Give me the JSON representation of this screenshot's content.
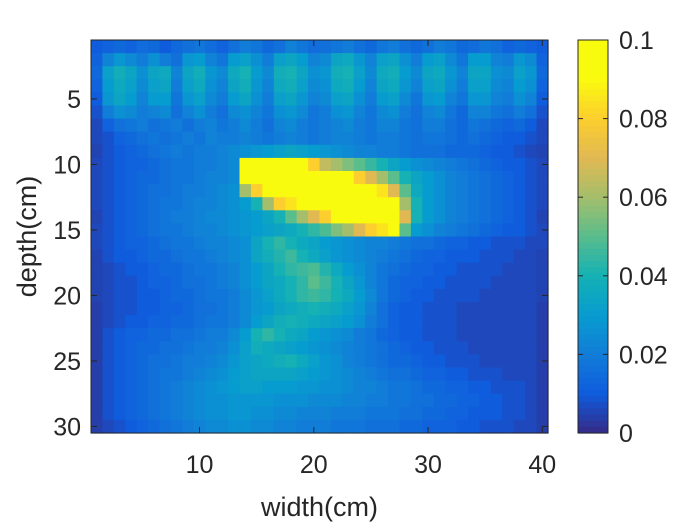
{
  "chart_data": {
    "type": "heatmap",
    "title": "",
    "xlabel": "width(cm)",
    "ylabel": "depth(cm)",
    "x_range": [
      1,
      40
    ],
    "y_range": [
      1,
      30
    ],
    "x_ticks": [
      10,
      20,
      30,
      40
    ],
    "x_tick_labels": [
      "10",
      "20",
      "30",
      "40"
    ],
    "y_ticks": [
      5,
      10,
      15,
      20,
      25,
      30
    ],
    "y_tick_labels": [
      "5",
      "10",
      "15",
      "20",
      "25",
      "30"
    ],
    "y_direction": "reversed",
    "colormap": "parula",
    "colorbar": {
      "range": [
        0,
        0.1
      ],
      "ticks": [
        0,
        0.02,
        0.04,
        0.06,
        0.08,
        0.1
      ],
      "tick_labels": [
        "0",
        "0.02",
        "0.04",
        "0.06",
        "0.08",
        "0.1"
      ]
    },
    "grid": false,
    "z": [
      [
        0.01,
        0.012,
        0.014,
        0.012,
        0.015,
        0.014,
        0.01,
        0.014,
        0.016,
        0.018,
        0.015,
        0.012,
        0.016,
        0.02,
        0.018,
        0.014,
        0.016,
        0.021,
        0.018,
        0.015,
        0.016,
        0.018,
        0.02,
        0.016,
        0.014,
        0.018,
        0.02,
        0.016,
        0.014,
        0.016,
        0.02,
        0.018,
        0.014,
        0.015,
        0.018,
        0.016,
        0.012,
        0.014,
        0.012,
        0.01
      ],
      [
        0.012,
        0.022,
        0.028,
        0.024,
        0.02,
        0.026,
        0.02,
        0.016,
        0.028,
        0.03,
        0.022,
        0.018,
        0.03,
        0.032,
        0.026,
        0.02,
        0.032,
        0.034,
        0.03,
        0.022,
        0.024,
        0.034,
        0.036,
        0.028,
        0.022,
        0.032,
        0.034,
        0.026,
        0.02,
        0.03,
        0.032,
        0.024,
        0.018,
        0.03,
        0.03,
        0.022,
        0.02,
        0.028,
        0.024,
        0.012
      ],
      [
        0.014,
        0.032,
        0.038,
        0.034,
        0.026,
        0.034,
        0.036,
        0.022,
        0.034,
        0.038,
        0.028,
        0.024,
        0.036,
        0.04,
        0.03,
        0.024,
        0.038,
        0.04,
        0.034,
        0.026,
        0.028,
        0.038,
        0.04,
        0.032,
        0.024,
        0.036,
        0.038,
        0.03,
        0.024,
        0.034,
        0.036,
        0.028,
        0.022,
        0.034,
        0.034,
        0.026,
        0.024,
        0.032,
        0.028,
        0.014
      ],
      [
        0.012,
        0.03,
        0.036,
        0.032,
        0.024,
        0.032,
        0.034,
        0.02,
        0.032,
        0.036,
        0.026,
        0.022,
        0.034,
        0.038,
        0.028,
        0.022,
        0.036,
        0.038,
        0.032,
        0.024,
        0.026,
        0.036,
        0.038,
        0.03,
        0.022,
        0.034,
        0.036,
        0.028,
        0.022,
        0.032,
        0.034,
        0.026,
        0.02,
        0.032,
        0.032,
        0.024,
        0.022,
        0.03,
        0.026,
        0.012
      ],
      [
        0.01,
        0.028,
        0.034,
        0.03,
        0.022,
        0.03,
        0.03,
        0.018,
        0.028,
        0.032,
        0.024,
        0.02,
        0.03,
        0.034,
        0.026,
        0.02,
        0.032,
        0.034,
        0.028,
        0.022,
        0.024,
        0.032,
        0.034,
        0.026,
        0.02,
        0.03,
        0.032,
        0.024,
        0.018,
        0.028,
        0.03,
        0.022,
        0.018,
        0.028,
        0.028,
        0.022,
        0.02,
        0.026,
        0.022,
        0.01
      ],
      [
        0.008,
        0.02,
        0.026,
        0.024,
        0.02,
        0.022,
        0.024,
        0.016,
        0.022,
        0.026,
        0.02,
        0.016,
        0.024,
        0.026,
        0.022,
        0.018,
        0.026,
        0.028,
        0.024,
        0.018,
        0.02,
        0.026,
        0.028,
        0.022,
        0.018,
        0.024,
        0.026,
        0.02,
        0.016,
        0.022,
        0.024,
        0.018,
        0.014,
        0.022,
        0.022,
        0.018,
        0.016,
        0.02,
        0.016,
        0.008
      ],
      [
        0.006,
        0.012,
        0.016,
        0.018,
        0.02,
        0.016,
        0.018,
        0.02,
        0.016,
        0.02,
        0.022,
        0.018,
        0.02,
        0.024,
        0.02,
        0.016,
        0.022,
        0.024,
        0.02,
        0.018,
        0.02,
        0.022,
        0.024,
        0.02,
        0.018,
        0.022,
        0.022,
        0.018,
        0.016,
        0.02,
        0.02,
        0.016,
        0.014,
        0.018,
        0.016,
        0.014,
        0.012,
        0.014,
        0.01,
        0.006
      ],
      [
        0.006,
        0.008,
        0.012,
        0.014,
        0.016,
        0.018,
        0.016,
        0.018,
        0.02,
        0.018,
        0.022,
        0.02,
        0.02,
        0.022,
        0.02,
        0.018,
        0.02,
        0.022,
        0.02,
        0.018,
        0.02,
        0.022,
        0.022,
        0.02,
        0.018,
        0.02,
        0.02,
        0.018,
        0.016,
        0.018,
        0.018,
        0.016,
        0.014,
        0.016,
        0.014,
        0.012,
        0.01,
        0.01,
        0.008,
        0.006
      ],
      [
        0.005,
        0.008,
        0.01,
        0.012,
        0.014,
        0.016,
        0.018,
        0.02,
        0.018,
        0.02,
        0.02,
        0.022,
        0.024,
        0.026,
        0.028,
        0.03,
        0.032,
        0.034,
        0.032,
        0.03,
        0.028,
        0.026,
        0.024,
        0.022,
        0.022,
        0.02,
        0.02,
        0.018,
        0.016,
        0.016,
        0.016,
        0.014,
        0.014,
        0.014,
        0.012,
        0.01,
        0.01,
        0.008,
        0.006,
        0.005
      ],
      [
        0.006,
        0.008,
        0.01,
        0.012,
        0.012,
        0.014,
        0.016,
        0.018,
        0.018,
        0.02,
        0.02,
        0.022,
        0.024,
        0.1,
        0.1,
        0.1,
        0.1,
        0.1,
        0.095,
        0.08,
        0.065,
        0.06,
        0.055,
        0.05,
        0.045,
        0.04,
        0.034,
        0.03,
        0.026,
        0.024,
        0.022,
        0.02,
        0.018,
        0.016,
        0.014,
        0.012,
        0.01,
        0.01,
        0.008,
        0.006
      ],
      [
        0.006,
        0.008,
        0.01,
        0.012,
        0.014,
        0.014,
        0.016,
        0.018,
        0.018,
        0.02,
        0.022,
        0.022,
        0.024,
        0.1,
        0.1,
        0.1,
        0.1,
        0.1,
        0.1,
        0.1,
        0.1,
        0.1,
        0.09,
        0.08,
        0.07,
        0.06,
        0.05,
        0.04,
        0.034,
        0.03,
        0.026,
        0.022,
        0.02,
        0.018,
        0.016,
        0.014,
        0.012,
        0.01,
        0.008,
        0.006
      ],
      [
        0.006,
        0.008,
        0.01,
        0.012,
        0.014,
        0.016,
        0.016,
        0.018,
        0.02,
        0.02,
        0.022,
        0.024,
        0.026,
        0.06,
        0.08,
        0.1,
        0.1,
        0.1,
        0.1,
        0.1,
        0.1,
        0.1,
        0.1,
        0.1,
        0.095,
        0.085,
        0.07,
        0.05,
        0.036,
        0.03,
        0.026,
        0.022,
        0.02,
        0.018,
        0.016,
        0.014,
        0.012,
        0.01,
        0.008,
        0.006
      ],
      [
        0.006,
        0.008,
        0.01,
        0.012,
        0.014,
        0.016,
        0.018,
        0.018,
        0.02,
        0.022,
        0.022,
        0.024,
        0.026,
        0.03,
        0.04,
        0.06,
        0.08,
        0.085,
        0.1,
        0.1,
        0.1,
        0.1,
        0.1,
        0.1,
        0.1,
        0.1,
        0.09,
        0.06,
        0.04,
        0.03,
        0.026,
        0.022,
        0.02,
        0.018,
        0.016,
        0.014,
        0.012,
        0.01,
        0.008,
        0.006
      ],
      [
        0.005,
        0.008,
        0.01,
        0.012,
        0.014,
        0.016,
        0.018,
        0.02,
        0.02,
        0.022,
        0.024,
        0.024,
        0.026,
        0.028,
        0.03,
        0.034,
        0.04,
        0.05,
        0.06,
        0.07,
        0.08,
        0.09,
        0.1,
        0.1,
        0.1,
        0.1,
        0.1,
        0.07,
        0.04,
        0.03,
        0.026,
        0.022,
        0.02,
        0.018,
        0.016,
        0.014,
        0.012,
        0.01,
        0.008,
        0.005
      ],
      [
        0.006,
        0.008,
        0.01,
        0.012,
        0.014,
        0.016,
        0.018,
        0.018,
        0.02,
        0.022,
        0.022,
        0.024,
        0.026,
        0.028,
        0.03,
        0.032,
        0.034,
        0.036,
        0.04,
        0.044,
        0.048,
        0.055,
        0.06,
        0.07,
        0.08,
        0.085,
        0.09,
        0.05,
        0.03,
        0.026,
        0.022,
        0.02,
        0.018,
        0.016,
        0.014,
        0.012,
        0.01,
        0.01,
        0.008,
        0.006
      ],
      [
        0.006,
        0.008,
        0.01,
        0.012,
        0.012,
        0.014,
        0.016,
        0.018,
        0.018,
        0.02,
        0.022,
        0.022,
        0.024,
        0.026,
        0.034,
        0.04,
        0.044,
        0.04,
        0.036,
        0.034,
        0.03,
        0.028,
        0.026,
        0.024,
        0.022,
        0.022,
        0.02,
        0.018,
        0.016,
        0.016,
        0.014,
        0.012,
        0.012,
        0.01,
        0.01,
        0.008,
        0.008,
        0.008,
        0.006,
        0.006
      ],
      [
        0.005,
        0.008,
        0.01,
        0.01,
        0.012,
        0.014,
        0.014,
        0.016,
        0.018,
        0.018,
        0.02,
        0.022,
        0.024,
        0.026,
        0.034,
        0.038,
        0.042,
        0.046,
        0.04,
        0.036,
        0.032,
        0.028,
        0.026,
        0.024,
        0.022,
        0.02,
        0.018,
        0.016,
        0.014,
        0.012,
        0.012,
        0.01,
        0.01,
        0.01,
        0.008,
        0.008,
        0.008,
        0.006,
        0.006,
        0.005
      ],
      [
        0.005,
        0.006,
        0.008,
        0.01,
        0.01,
        0.012,
        0.014,
        0.014,
        0.016,
        0.018,
        0.018,
        0.02,
        0.022,
        0.026,
        0.03,
        0.034,
        0.04,
        0.044,
        0.046,
        0.048,
        0.042,
        0.036,
        0.03,
        0.026,
        0.022,
        0.018,
        0.016,
        0.014,
        0.012,
        0.012,
        0.01,
        0.01,
        0.008,
        0.008,
        0.008,
        0.008,
        0.006,
        0.006,
        0.006,
        0.005
      ],
      [
        0.005,
        0.006,
        0.008,
        0.008,
        0.01,
        0.012,
        0.012,
        0.014,
        0.016,
        0.016,
        0.018,
        0.02,
        0.022,
        0.026,
        0.03,
        0.034,
        0.036,
        0.04,
        0.044,
        0.05,
        0.046,
        0.04,
        0.034,
        0.028,
        0.022,
        0.018,
        0.014,
        0.012,
        0.012,
        0.01,
        0.01,
        0.008,
        0.008,
        0.008,
        0.008,
        0.006,
        0.006,
        0.006,
        0.006,
        0.005
      ],
      [
        0.005,
        0.006,
        0.008,
        0.008,
        0.01,
        0.01,
        0.012,
        0.014,
        0.014,
        0.016,
        0.018,
        0.018,
        0.02,
        0.024,
        0.028,
        0.032,
        0.036,
        0.04,
        0.044,
        0.046,
        0.044,
        0.04,
        0.036,
        0.03,
        0.024,
        0.018,
        0.014,
        0.012,
        0.01,
        0.01,
        0.008,
        0.008,
        0.008,
        0.008,
        0.006,
        0.006,
        0.006,
        0.006,
        0.006,
        0.005
      ],
      [
        0.004,
        0.006,
        0.008,
        0.008,
        0.01,
        0.01,
        0.012,
        0.012,
        0.014,
        0.016,
        0.016,
        0.018,
        0.02,
        0.024,
        0.028,
        0.03,
        0.034,
        0.036,
        0.038,
        0.04,
        0.038,
        0.036,
        0.032,
        0.028,
        0.022,
        0.016,
        0.012,
        0.01,
        0.01,
        0.008,
        0.008,
        0.008,
        0.006,
        0.006,
        0.006,
        0.006,
        0.006,
        0.006,
        0.006,
        0.004
      ],
      [
        0.004,
        0.006,
        0.008,
        0.01,
        0.01,
        0.012,
        0.012,
        0.014,
        0.014,
        0.016,
        0.018,
        0.018,
        0.02,
        0.024,
        0.03,
        0.034,
        0.038,
        0.04,
        0.038,
        0.036,
        0.034,
        0.032,
        0.03,
        0.026,
        0.02,
        0.016,
        0.012,
        0.01,
        0.01,
        0.008,
        0.008,
        0.008,
        0.006,
        0.006,
        0.006,
        0.006,
        0.006,
        0.006,
        0.006,
        0.004
      ],
      [
        0.004,
        0.008,
        0.01,
        0.012,
        0.012,
        0.014,
        0.014,
        0.016,
        0.016,
        0.018,
        0.02,
        0.02,
        0.024,
        0.03,
        0.04,
        0.044,
        0.04,
        0.036,
        0.034,
        0.03,
        0.028,
        0.026,
        0.024,
        0.02,
        0.018,
        0.014,
        0.012,
        0.01,
        0.01,
        0.008,
        0.008,
        0.008,
        0.006,
        0.006,
        0.006,
        0.006,
        0.006,
        0.006,
        0.006,
        0.004
      ],
      [
        0.004,
        0.008,
        0.01,
        0.012,
        0.014,
        0.014,
        0.016,
        0.016,
        0.018,
        0.02,
        0.02,
        0.022,
        0.026,
        0.032,
        0.038,
        0.036,
        0.034,
        0.032,
        0.03,
        0.028,
        0.026,
        0.024,
        0.022,
        0.02,
        0.018,
        0.016,
        0.014,
        0.012,
        0.01,
        0.01,
        0.008,
        0.008,
        0.008,
        0.006,
        0.006,
        0.006,
        0.006,
        0.006,
        0.006,
        0.004
      ],
      [
        0.004,
        0.008,
        0.01,
        0.012,
        0.014,
        0.016,
        0.016,
        0.018,
        0.02,
        0.02,
        0.022,
        0.024,
        0.028,
        0.032,
        0.034,
        0.036,
        0.038,
        0.04,
        0.036,
        0.032,
        0.028,
        0.026,
        0.022,
        0.02,
        0.018,
        0.016,
        0.014,
        0.014,
        0.012,
        0.01,
        0.01,
        0.008,
        0.008,
        0.008,
        0.006,
        0.006,
        0.006,
        0.006,
        0.006,
        0.004
      ],
      [
        0.004,
        0.008,
        0.01,
        0.012,
        0.014,
        0.016,
        0.018,
        0.018,
        0.02,
        0.022,
        0.024,
        0.026,
        0.03,
        0.032,
        0.034,
        0.034,
        0.034,
        0.034,
        0.032,
        0.03,
        0.028,
        0.026,
        0.024,
        0.022,
        0.02,
        0.018,
        0.016,
        0.016,
        0.014,
        0.012,
        0.012,
        0.01,
        0.01,
        0.008,
        0.008,
        0.008,
        0.006,
        0.006,
        0.006,
        0.004
      ],
      [
        0.004,
        0.008,
        0.01,
        0.012,
        0.014,
        0.016,
        0.018,
        0.02,
        0.022,
        0.024,
        0.026,
        0.028,
        0.03,
        0.032,
        0.032,
        0.03,
        0.03,
        0.03,
        0.028,
        0.028,
        0.026,
        0.026,
        0.024,
        0.022,
        0.022,
        0.02,
        0.018,
        0.018,
        0.016,
        0.014,
        0.014,
        0.012,
        0.012,
        0.01,
        0.01,
        0.008,
        0.008,
        0.008,
        0.006,
        0.004
      ],
      [
        0.004,
        0.008,
        0.01,
        0.012,
        0.014,
        0.016,
        0.018,
        0.02,
        0.022,
        0.024,
        0.026,
        0.026,
        0.028,
        0.028,
        0.028,
        0.028,
        0.026,
        0.026,
        0.026,
        0.024,
        0.024,
        0.024,
        0.022,
        0.022,
        0.02,
        0.02,
        0.018,
        0.018,
        0.016,
        0.016,
        0.014,
        0.014,
        0.012,
        0.012,
        0.01,
        0.01,
        0.008,
        0.008,
        0.006,
        0.004
      ],
      [
        0.004,
        0.008,
        0.01,
        0.012,
        0.014,
        0.016,
        0.018,
        0.02,
        0.022,
        0.024,
        0.026,
        0.026,
        0.028,
        0.028,
        0.026,
        0.026,
        0.024,
        0.024,
        0.022,
        0.022,
        0.022,
        0.02,
        0.02,
        0.02,
        0.018,
        0.018,
        0.018,
        0.016,
        0.016,
        0.014,
        0.014,
        0.012,
        0.012,
        0.01,
        0.01,
        0.01,
        0.008,
        0.008,
        0.006,
        0.004
      ],
      [
        0.004,
        0.006,
        0.008,
        0.01,
        0.012,
        0.014,
        0.016,
        0.018,
        0.02,
        0.022,
        0.024,
        0.024,
        0.026,
        0.026,
        0.024,
        0.024,
        0.022,
        0.022,
        0.02,
        0.02,
        0.02,
        0.018,
        0.018,
        0.018,
        0.016,
        0.016,
        0.016,
        0.014,
        0.014,
        0.012,
        0.012,
        0.012,
        0.01,
        0.01,
        0.008,
        0.008,
        0.008,
        0.006,
        0.006,
        0.004
      ]
    ]
  }
}
